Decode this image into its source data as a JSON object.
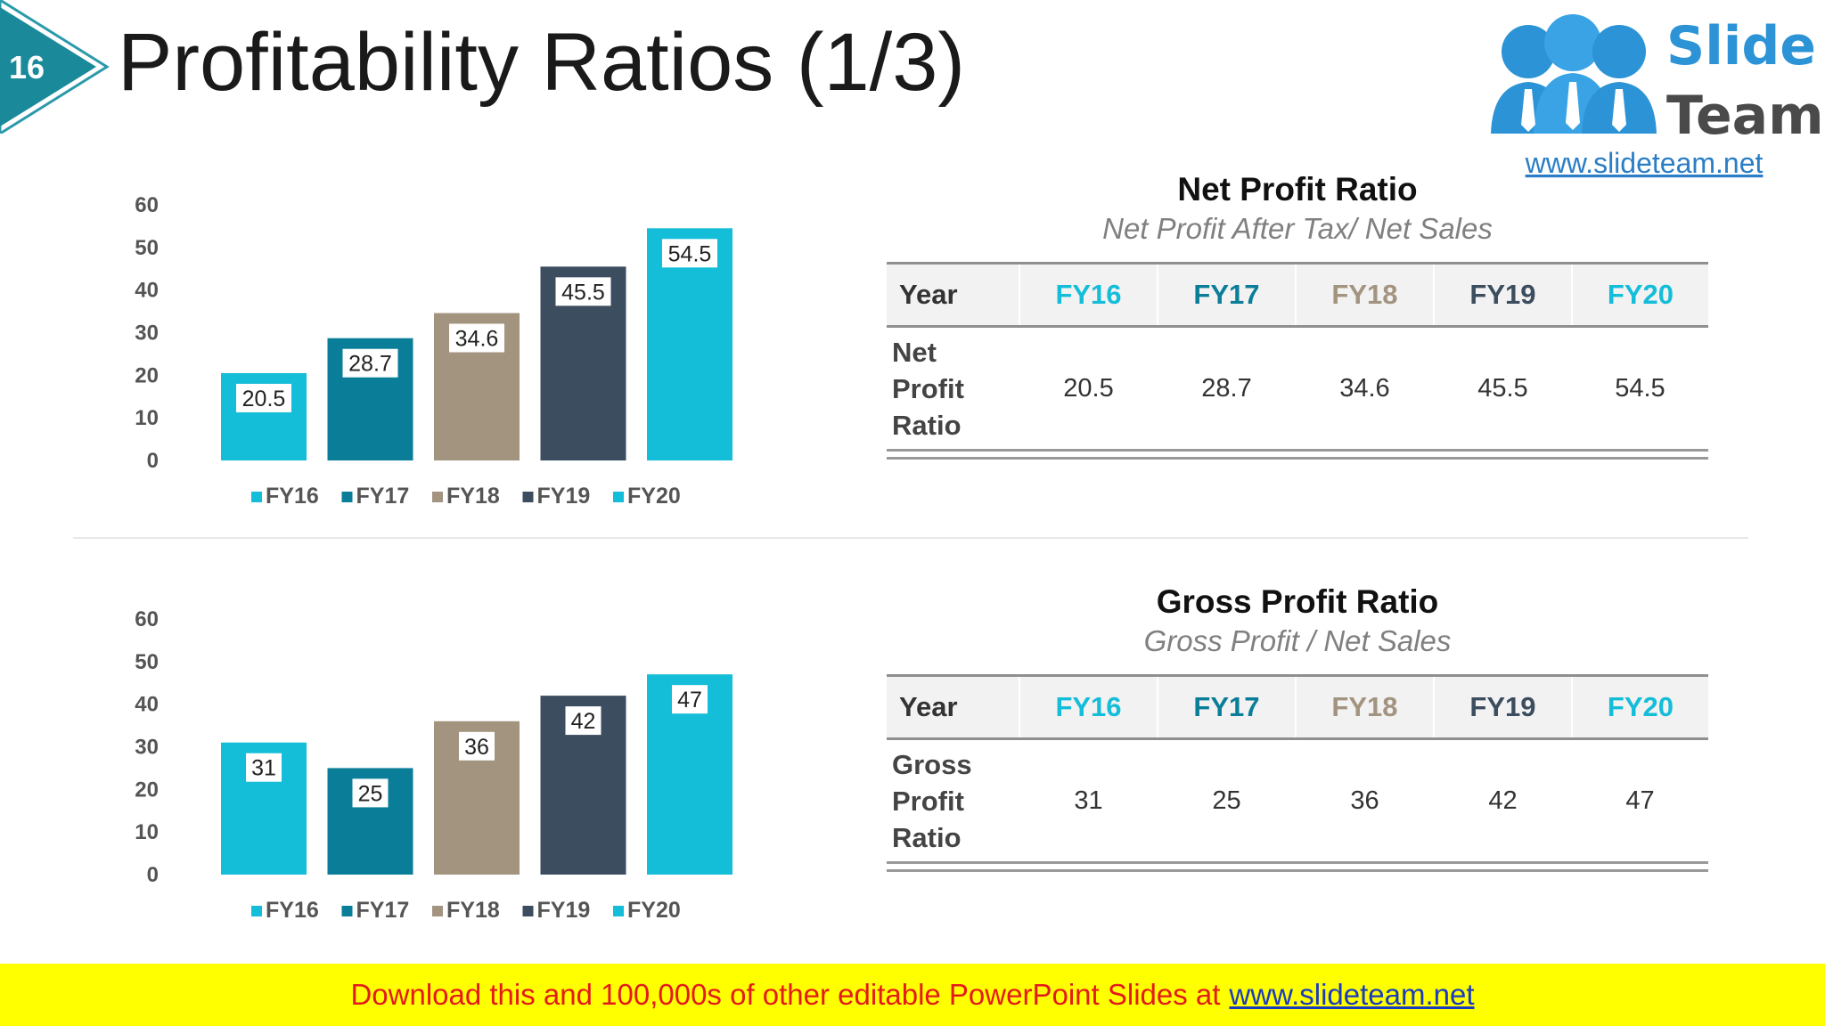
{
  "slide": {
    "number": "16",
    "title": "Profitability Ratios (1/3)",
    "badge_color": "#1a8a9a"
  },
  "logo": {
    "line1": "Slide",
    "line2": "Team",
    "url": "www.slideteam.net",
    "colors": {
      "blue": "#2b93d6",
      "dark": "#4a4a4a"
    }
  },
  "colors": {
    "FY16": "#14bdd8",
    "FY17": "#0a7e98",
    "FY18": "#a39480",
    "FY19": "#3b4d5e",
    "FY20": "#14bdd8"
  },
  "chart_data": [
    {
      "type": "bar",
      "categories": [
        "FY16",
        "FY17",
        "FY18",
        "FY19",
        "FY20"
      ],
      "values": [
        20.5,
        28.7,
        34.6,
        45.5,
        54.5
      ],
      "value_labels": [
        "20.5",
        "28.7",
        "34.6",
        "45.5",
        "54.5"
      ],
      "ylim": [
        0,
        60
      ],
      "yticks": [
        "0",
        "10",
        "20",
        "30",
        "40",
        "50",
        "60"
      ],
      "legend": [
        "FY16",
        "FY17",
        "FY18",
        "FY19",
        "FY20"
      ],
      "legend_position": "bottom",
      "grid": false
    },
    {
      "type": "bar",
      "categories": [
        "FY16",
        "FY17",
        "FY18",
        "FY19",
        "FY20"
      ],
      "values": [
        31,
        25,
        36,
        42,
        47
      ],
      "value_labels": [
        "31",
        "25",
        "36",
        "42",
        "47"
      ],
      "ylim": [
        0,
        60
      ],
      "yticks": [
        "0",
        "10",
        "20",
        "30",
        "40",
        "50",
        "60"
      ],
      "legend": [
        "FY16",
        "FY17",
        "FY18",
        "FY19",
        "FY20"
      ],
      "legend_position": "bottom",
      "grid": false
    }
  ],
  "tables": [
    {
      "title": "Net Profit Ratio",
      "subtitle": "Net Profit After Tax/ Net Sales",
      "year_label": "Year",
      "years": [
        "FY16",
        "FY17",
        "FY18",
        "FY19",
        "FY20"
      ],
      "row_label": [
        "Net",
        "Profit",
        "Ratio"
      ],
      "values": [
        "20.5",
        "28.7",
        "34.6",
        "45.5",
        "54.5"
      ]
    },
    {
      "title": "Gross Profit Ratio",
      "subtitle": "Gross Profit / Net Sales",
      "year_label": "Year",
      "years": [
        "FY16",
        "FY17",
        "FY18",
        "FY19",
        "FY20"
      ],
      "row_label": [
        "Gross",
        "Profit",
        "Ratio"
      ],
      "values": [
        "31",
        "25",
        "36",
        "42",
        "47"
      ]
    }
  ],
  "banner": {
    "text": "Download this and 100,000s of other editable PowerPoint Slides at",
    "link": "www.slideteam.net"
  }
}
